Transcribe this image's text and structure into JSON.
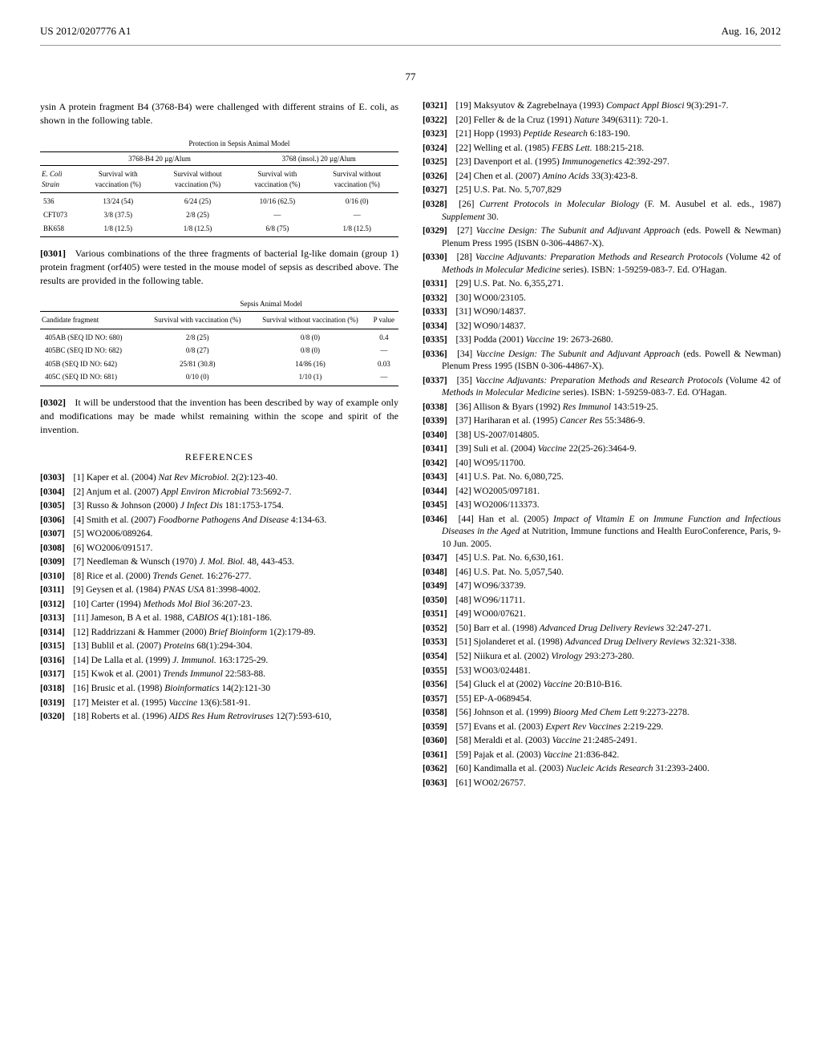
{
  "header": {
    "left": "US 2012/0207776 A1",
    "right": "Aug. 16, 2012"
  },
  "pagenum": "77",
  "col1": {
    "intro": "ysin A protein fragment B4 (3768-B4) were challenged with different strains of E. coli, as shown in the following table.",
    "table1": {
      "title": "Protection in Sepsis Animal Model",
      "group1": "3768-B4 20 µg/Alum",
      "group2": "3768 (insol.) 20 µg/Alum",
      "col_headers": [
        "E. Coli Strain",
        "Survival with vaccination (%)",
        "Survival without vaccination (%)",
        "Survival with vaccination (%)",
        "Survival without vaccination (%)"
      ],
      "rows": [
        [
          "536",
          "13/24 (54)",
          "6/24 (25)",
          "10/16 (62.5)",
          "0/16 (0)"
        ],
        [
          "CFT073",
          "3/8 (37.5)",
          "2/8 (25)",
          "—",
          "—"
        ],
        [
          "BK658",
          "1/8 (12.5)",
          "1/8 (12.5)",
          "6/8 (75)",
          "1/8 (12.5)"
        ]
      ]
    },
    "para0301": "Various combinations of the three fragments of bacterial Ig-like domain (group 1) protein fragment (orf405) were tested in the mouse model of sepsis as described above. The results are provided in the following table.",
    "table2": {
      "title": "Sepsis Animal Model",
      "col_headers": [
        "Candidate fragment",
        "Survival with vaccination (%)",
        "Survival without vaccination (%)",
        "P value"
      ],
      "rows": [
        [
          "405AB (SEQ ID NO: 680)",
          "2/8 (25)",
          "0/8 (0)",
          "0.4"
        ],
        [
          "405BC (SEQ ID NO: 682)",
          "0/8 (27)",
          "0/8 (0)",
          "—"
        ],
        [
          "405B (SEQ ID NO: 642)",
          "25/81 (30.8)",
          "14/86 (16)",
          "0.03"
        ],
        [
          "405C (SEQ ID NO: 681)",
          "0/10 (0)",
          "1/10 (1)",
          "—"
        ]
      ]
    },
    "para0302": "It will be understood that the invention has been described by way of example only and modifications may be made whilst remaining within the scope and spirit of the invention.",
    "ref_title": "REFERENCES",
    "refs": [
      {
        "n": "[0303]",
        "t": "[1] Kaper et al. (2004) <em>Nat Rev Microbiol.</em> 2(2):123-40."
      },
      {
        "n": "[0304]",
        "t": "[2] Anjum et al. (2007) <em>Appl Environ Microbial</em> 73:5692-7."
      },
      {
        "n": "[0305]",
        "t": "[3] Russo & Johnson (2000) <em>J Infect Dis</em> 181:1753-1754."
      },
      {
        "n": "[0306]",
        "t": "[4] Smith et al. (2007) <em>Foodborne Pathogens And Disease</em> 4:134-63."
      },
      {
        "n": "[0307]",
        "t": "[5] WO2006/089264."
      },
      {
        "n": "[0308]",
        "t": "[6] WO2006/091517."
      },
      {
        "n": "[0309]",
        "t": "[7] Needleman & Wunsch (1970) <em>J. Mol. Biol.</em> 48, 443-453."
      },
      {
        "n": "[0310]",
        "t": "[8] Rice et al. (2000) <em>Trends Genet.</em> 16:276-277."
      },
      {
        "n": "[0311]",
        "t": "[9] Geysen et al. (1984) <em>PNAS USA</em> 81:3998-4002."
      },
      {
        "n": "[0312]",
        "t": "[10] Carter (1994) <em>Methods Mol Biol</em> 36:207-23."
      },
      {
        "n": "[0313]",
        "t": "[11] Jameson, B A et al. 1988, <em>CABIOS</em> 4(1):181-186."
      },
      {
        "n": "[0314]",
        "t": "[12] Raddrizzani & Hammer (2000) <em>Brief Bioinform</em> 1(2):179-89."
      },
      {
        "n": "[0315]",
        "t": "[13] Bublil et al. (2007) <em>Proteins</em> 68(1):294-304."
      },
      {
        "n": "[0316]",
        "t": "[14] De Lalla et al. (1999) <em>J. Immunol.</em> 163:1725-29."
      },
      {
        "n": "[0317]",
        "t": "[15] Kwok et al. (2001) <em>Trends Immunol</em> 22:583-88."
      },
      {
        "n": "[0318]",
        "t": "[16] Brusic et al. (1998) <em>Bioinformatics</em> 14(2):121-30"
      },
      {
        "n": "[0319]",
        "t": "[17] Meister et al. (1995) <em>Vaccine</em> 13(6):581-91."
      },
      {
        "n": "[0320]",
        "t": "[18] Roberts et al. (1996) <em>AIDS Res Hum Retroviruses</em> 12(7):593-610,"
      }
    ]
  },
  "col2": {
    "refs": [
      {
        "n": "[0321]",
        "t": "[19] Maksyutov & Zagrebelnaya (1993) <em>Compact Appl Biosci</em> 9(3):291-7."
      },
      {
        "n": "[0322]",
        "t": "[20] Feller & de la Cruz (1991) <em>Nature</em> 349(6311): 720-1."
      },
      {
        "n": "[0323]",
        "t": "[21] Hopp (1993) <em>Peptide Research</em> 6:183-190."
      },
      {
        "n": "[0324]",
        "t": "[22] Welling et al. (1985) <em>FEBS Lett.</em> 188:215-218."
      },
      {
        "n": "[0325]",
        "t": "[23] Davenport et al. (1995) <em>Immunogenetics</em> 42:392-297."
      },
      {
        "n": "[0326]",
        "t": "[24] Chen et al. (2007) <em>Amino Acids</em> 33(3):423-8."
      },
      {
        "n": "[0327]",
        "t": "[25] U.S. Pat. No. 5,707,829"
      },
      {
        "n": "[0328]",
        "t": "[26] <em>Current Protocols in Molecular Biology</em> (F. M. Ausubel et al. eds., 1987) <em>Supplement</em> 30."
      },
      {
        "n": "[0329]",
        "t": "[27] <em>Vaccine Design: The Subunit and Adjuvant Approach</em> (eds. Powell & Newman) Plenum Press 1995 (ISBN 0-306-44867-X)."
      },
      {
        "n": "[0330]",
        "t": "[28] <em>Vaccine Adjuvants: Preparation Methods and Research Protocols</em> (Volume 42 of <em>Methods in Molecular Medicine</em> series). ISBN: 1-59259-083-7. Ed. O'Hagan."
      },
      {
        "n": "[0331]",
        "t": "[29] U.S. Pat. No. 6,355,271."
      },
      {
        "n": "[0332]",
        "t": "[30] WO00/23105."
      },
      {
        "n": "[0333]",
        "t": "[31] WO90/14837."
      },
      {
        "n": "[0334]",
        "t": "[32] WO90/14837."
      },
      {
        "n": "[0335]",
        "t": "[33] Podda (2001) <em>Vaccine</em> 19: 2673-2680."
      },
      {
        "n": "[0336]",
        "t": "[34] <em>Vaccine Design: The Subunit and Adjuvant Approach</em> (eds. Powell & Newman) Plenum Press 1995 (ISBN 0-306-44867-X)."
      },
      {
        "n": "[0337]",
        "t": "[35] <em>Vaccine Adjuvants: Preparation Methods and Research Protocols</em> (Volume 42 of <em>Methods in Molecular Medicine</em> series). ISBN: 1-59259-083-7. Ed. O'Hagan."
      },
      {
        "n": "[0338]",
        "t": "[36] Allison & Byars (1992) <em>Res Immunol</em> 143:519-25."
      },
      {
        "n": "[0339]",
        "t": "[37] Hariharan et al. (1995) <em>Cancer Res</em> 55:3486-9."
      },
      {
        "n": "[0340]",
        "t": "[38] US-2007/014805."
      },
      {
        "n": "[0341]",
        "t": "[39] Suli et al. (2004) <em>Vaccine</em> 22(25-26):3464-9."
      },
      {
        "n": "[0342]",
        "t": "[40] WO95/11700."
      },
      {
        "n": "[0343]",
        "t": "[41] U.S. Pat. No. 6,080,725."
      },
      {
        "n": "[0344]",
        "t": "[42] WO2005/097181."
      },
      {
        "n": "[0345]",
        "t": "[43] WO2006/113373."
      },
      {
        "n": "[0346]",
        "t": "[44] Han et al. (2005) <em>Impact of Vitamin E on Immune Function and Infectious Diseases in the Aged</em> at Nutrition, Immune functions and Health EuroConference, Paris, 9-10 Jun. 2005."
      },
      {
        "n": "[0347]",
        "t": "[45] U.S. Pat. No. 6,630,161."
      },
      {
        "n": "[0348]",
        "t": "[46] U.S. Pat. No. 5,057,540."
      },
      {
        "n": "[0349]",
        "t": "[47] WO96/33739."
      },
      {
        "n": "[0350]",
        "t": "[48] WO96/11711."
      },
      {
        "n": "[0351]",
        "t": "[49] WO00/07621."
      },
      {
        "n": "[0352]",
        "t": "[50] Barr et al. (1998) <em>Advanced Drug Delivery Reviews</em> 32:247-271."
      },
      {
        "n": "[0353]",
        "t": "[51] Sjolanderet et al. (1998) <em>Advanced Drug Delivery Reviews</em> 32:321-338."
      },
      {
        "n": "[0354]",
        "t": "[52] Niikura et al. (2002) <em>Virology</em> 293:273-280."
      },
      {
        "n": "[0355]",
        "t": "[53] WO03/024481."
      },
      {
        "n": "[0356]",
        "t": "[54] Gluck el at (2002) <em>Vaccine</em> 20:B10-B16."
      },
      {
        "n": "[0357]",
        "t": "[55] EP-A-0689454."
      },
      {
        "n": "[0358]",
        "t": "[56] Johnson et al. (1999) <em>Bioorg Med Chem Lett</em> 9:2273-2278."
      },
      {
        "n": "[0359]",
        "t": "[57] Evans et al. (2003) <em>Expert Rev Vaccines</em> 2:219-229."
      },
      {
        "n": "[0360]",
        "t": "[58] Meraldi et al. (2003) <em>Vaccine</em> 21:2485-2491."
      },
      {
        "n": "[0361]",
        "t": "[59] Pajak et al. (2003) <em>Vaccine</em> 21:836-842."
      },
      {
        "n": "[0362]",
        "t": "[60] Kandimalla et al. (2003) <em>Nucleic Acids Research</em> 31:2393-2400."
      },
      {
        "n": "[0363]",
        "t": "[61] WO02/26757."
      }
    ]
  }
}
